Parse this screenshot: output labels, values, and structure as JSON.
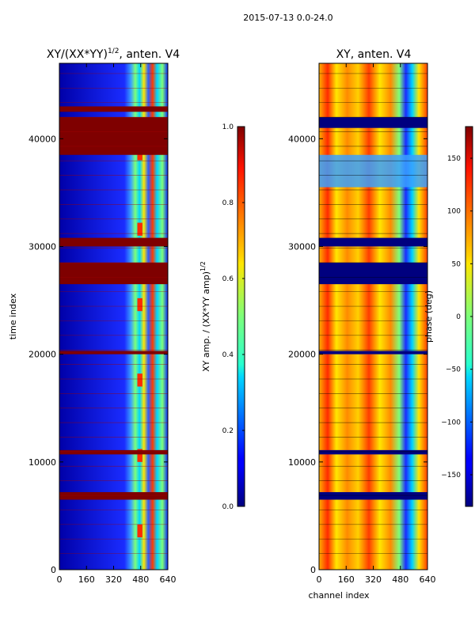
{
  "figure_title": "2015-07-13 0.0-24.0",
  "chart_data": [
    {
      "type": "heatmap",
      "title_main": "XY/(XX*YY)",
      "title_sup": "1/2",
      "title_tail": ", anten. V4",
      "xlabel": "",
      "ylabel": "time index",
      "xlim": [
        0,
        640
      ],
      "ylim": [
        0,
        47000
      ],
      "x_ticks": [
        0,
        160,
        320,
        480,
        640
      ],
      "y_ticks": [
        0,
        10000,
        20000,
        30000,
        40000
      ],
      "colormap": "jet",
      "colorbar": {
        "label_main": "XY amp. / (XX*YY amp)",
        "label_sup": "1/2",
        "range": [
          0.0,
          1.0
        ],
        "ticks": [
          0.0,
          0.2,
          0.4,
          0.6,
          0.8,
          1.0
        ],
        "tick_labels": [
          "0.0",
          "0.2",
          "0.4",
          "0.6",
          "0.8",
          "1.0"
        ]
      },
      "saturated_time_bands": [
        [
          6500,
          7200
        ],
        [
          10700,
          11100
        ],
        [
          20000,
          20300
        ],
        [
          26500,
          28500
        ],
        [
          30000,
          30800
        ],
        [
          38500,
          42000
        ],
        [
          42500,
          43000
        ]
      ],
      "rfi_channel_range": [
        420,
        600
      ]
    },
    {
      "type": "heatmap",
      "title": "XY, anten. V4",
      "xlabel": "channel index",
      "ylabel": "",
      "xlim": [
        0,
        640
      ],
      "ylim": [
        0,
        47000
      ],
      "x_ticks": [
        0,
        160,
        320,
        480,
        640
      ],
      "y_ticks": [
        0,
        10000,
        20000,
        30000,
        40000
      ],
      "colormap": "jet",
      "colorbar": {
        "label": "phase (deg)",
        "range": [
          -180,
          180
        ],
        "ticks": [
          -150,
          -100,
          -50,
          0,
          50,
          100,
          150
        ],
        "tick_labels": [
          "−150",
          "−100",
          "−50",
          "0",
          "50",
          "100",
          "150"
        ]
      },
      "flagged_time_bands": [
        [
          6500,
          7200
        ],
        [
          10700,
          11100
        ],
        [
          20000,
          20300
        ],
        [
          26500,
          28500
        ],
        [
          30000,
          30800
        ],
        [
          41000,
          42000
        ]
      ],
      "noisy_time_band": [
        35500,
        38500
      ]
    }
  ]
}
